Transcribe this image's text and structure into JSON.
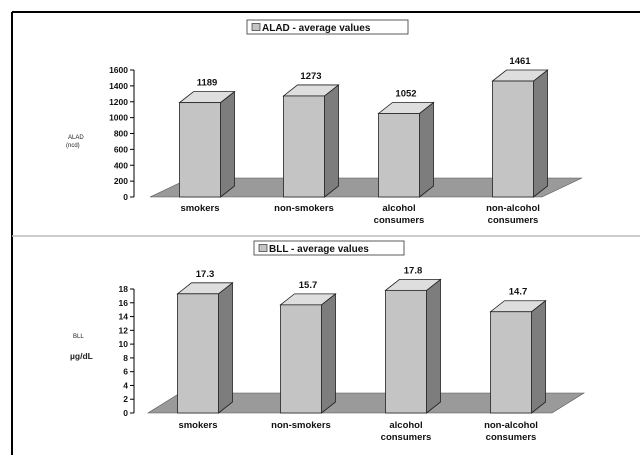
{
  "chart_data": [
    {
      "type": "bar",
      "style": "3d",
      "title": "ALAD - average values",
      "ylabel": [
        "ALAD",
        "(ncd)"
      ],
      "categories": [
        [
          "smokers"
        ],
        [
          "non-smokers"
        ],
        [
          "alcohol",
          "consumers"
        ],
        [
          "non-alcohol",
          "consumers"
        ]
      ],
      "values": [
        1189,
        1273,
        1052,
        1461
      ],
      "value_labels": [
        "1189",
        "1273",
        "1052",
        "1461"
      ],
      "ylim": [
        0,
        1600
      ],
      "yticks": [
        0,
        200,
        400,
        600,
        800,
        1000,
        1200,
        1400,
        1600
      ],
      "grid": false,
      "legend": "top-center"
    },
    {
      "type": "bar",
      "style": "3d",
      "title": "BLL - average values",
      "ylabel": [
        "BLL",
        "µg/dL"
      ],
      "categories": [
        [
          "smokers"
        ],
        [
          "non-smokers"
        ],
        [
          "alcohol",
          "consumers"
        ],
        [
          "non-alcohol",
          "consumers"
        ]
      ],
      "values": [
        17.3,
        15.7,
        17.8,
        14.7
      ],
      "value_labels": [
        "17.3",
        "15.7",
        "17.8",
        "14.7"
      ],
      "ylim": [
        0,
        18
      ],
      "yticks": [
        0,
        2,
        4,
        6,
        8,
        10,
        12,
        14,
        16,
        18
      ],
      "grid": false,
      "legend": "top-center"
    }
  ],
  "colors": {
    "bar_front": "#c4c4c4",
    "bar_side": "#7d7d7d",
    "bar_top": "#dedede",
    "floor": "#9a9a9a",
    "frame": "#000000",
    "divider": "#bbbbbb"
  }
}
